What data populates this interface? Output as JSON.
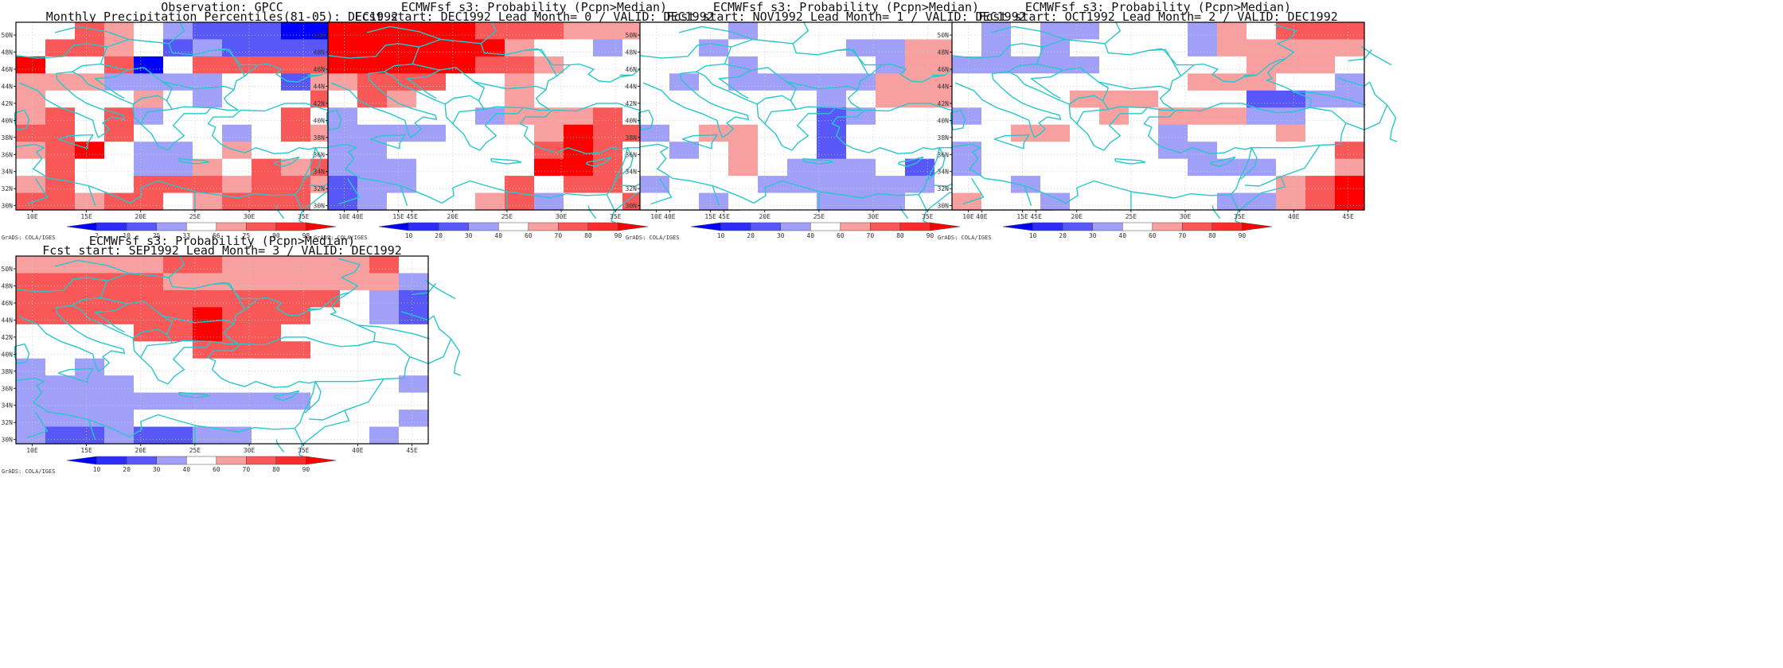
{
  "lon_labels": [
    "10E",
    "15E",
    "20E",
    "25E",
    "30E",
    "35E",
    "40E",
    "45E"
  ],
  "lat_labels": [
    "30N",
    "32N",
    "34N",
    "36N",
    "38N",
    "40N",
    "42N",
    "44N",
    "46N",
    "48N",
    "50N"
  ],
  "credit": "GrADS: COLA/IGES",
  "colors": {
    "coast": "#29c6cc",
    "grid": "#c8c8c8",
    "obs_scale": [
      "#0000ff",
      "#5858f8",
      "#a0a0f8",
      "#ffffff",
      "#f8a0a0",
      "#f85858",
      "#ff0000"
    ],
    "prob_scale": [
      "#0000ff",
      "#5858f8",
      "#a0a0f8",
      "#ffffff",
      "#f8a0a0",
      "#f85858",
      "#ff0000"
    ]
  },
  "panels": [
    {
      "title1": "Observation: GPCC",
      "title2": "Monthly Precipitation Percentiles(81-05): DEC1992",
      "colorbar_labels": [
        "2",
        "10",
        "25",
        "33",
        "66",
        "75",
        "90",
        "98"
      ],
      "grid": [
        "33543211100000",
        "35543121111000",
        "63350355555550",
        "44422223314335",
        "43334323335446",
        "45352333353455",
        "55353332354455",
        "45632234333355",
        "35332243545455",
        "45335554554455",
        "55455345553455"
      ]
    },
    {
      "title1": "ECMWFsf s3: Probability (Pcpn>Median)",
      "title2": "Fcst start: DEC1992  Lead Month= 0 / VALID: DEC1992",
      "colorbar_labels": [
        "10",
        "20",
        "30",
        "40",
        "60",
        "70",
        "80",
        "90"
      ],
      "grid": [
        "66666555444425",
        "66666643323334",
        "66666554333333",
        "45553343333333",
        "35433343333332",
        "23333244453333",
        "22223334655333",
        "22333335653333",
        "22233336653355",
        "12233353553336",
        "12333452335256"
      ]
    },
    {
      "title1": "ECMWFsf s3: Probability (Pcpn>Median)",
      "title2": "Fcst start: NOV1992  Lead Month= 1 / VALID: DEC1992",
      "colorbar_labels": [
        "10",
        "20",
        "30",
        "40",
        "60",
        "70",
        "80",
        "90"
      ],
      "grid": [
        "33323333333335",
        "33233332244433",
        "33323333244443",
        "32322222444421",
        "33333323444333",
        "33333312333333",
        "23443313333335",
        "32343313333356",
        "33343222313366",
        "23332222223553",
        "33233322233555"
      ]
    },
    {
      "title1": "ECMWFsf s3: Probability (Pcpn>Median)",
      "title2": "Fcst start: OCT1992  Lead Month= 2 / VALID: DEC1992",
      "colorbar_labels": [
        "10",
        "20",
        "30",
        "40",
        "60",
        "70",
        "80",
        "90"
      ],
      "grid": [
        "32322333243555",
        "32323333244444",
        "22222333334443",
        "33333333444332",
        "33334443331122",
        "23333434442233",
        "33443332333433",
        "23333332233335",
        "23333333222334",
        "33233333333456",
        "43323333322456"
      ]
    },
    {
      "title1": "ECMWFsf s3: Probability (Pcpn>Median)",
      "title2": "Fcst start: SEP1992  Lead Month= 3 / VALID: DEC1992",
      "colorbar_labels": [
        "10",
        "20",
        "30",
        "40",
        "60",
        "70",
        "80",
        "90"
      ],
      "grid": [
        "44444554444453",
        "55555444444442",
        "55555555555321",
        "55555565553321",
        "33335565533333",
        "33333355553333",
        "23233333333333",
        "22223333333332",
        "22222222223333",
        "22223333333332",
        "21121122333323"
      ]
    }
  ]
}
